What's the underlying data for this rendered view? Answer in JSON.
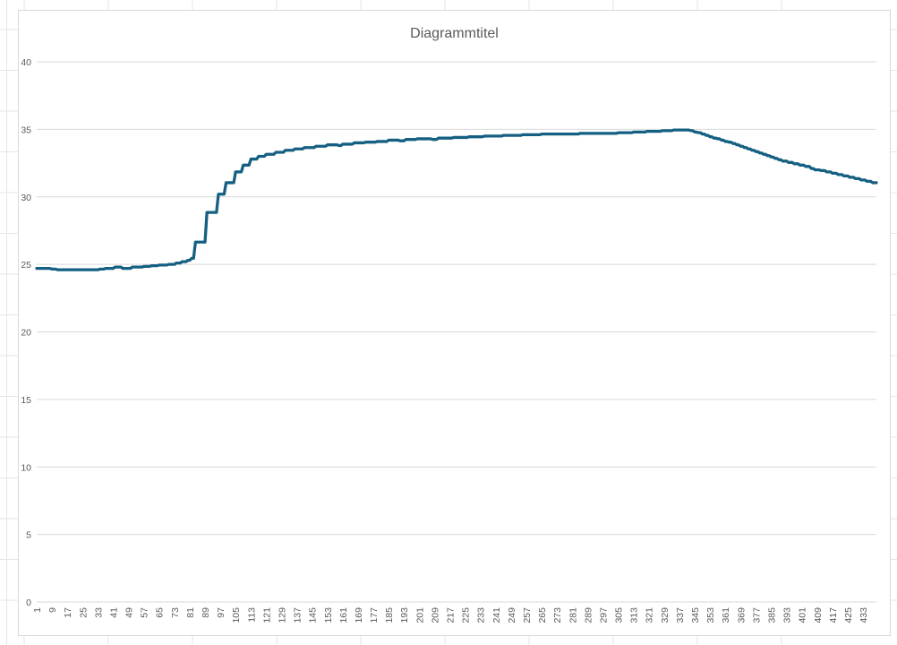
{
  "chart": {
    "colors": {
      "series": "#156082",
      "gridline": "#d9d9d9",
      "axis_text": "#595959",
      "title_text": "#595959",
      "chart_border": "#d9d9d9",
      "sheet_gridline": "#e6e6e6",
      "background": "#ffffff"
    }
  },
  "chart_data": {
    "type": "line",
    "title": "Diagrammtitel",
    "xlabel": "",
    "ylabel": "",
    "ylim": [
      0,
      40
    ],
    "y_ticks": [
      0,
      5,
      10,
      15,
      20,
      25,
      30,
      35,
      40
    ],
    "grid": true,
    "legend": "none",
    "x_start": 1,
    "x_step": 1,
    "x_label_interval": 8,
    "x_tick_labels": [
      1,
      9,
      17,
      25,
      33,
      41,
      49,
      57,
      65,
      73,
      81,
      89,
      97,
      105,
      113,
      121,
      129,
      137,
      145,
      153,
      161,
      169,
      177,
      185,
      193,
      201,
      209,
      217,
      225,
      233,
      241,
      249,
      257,
      265,
      273,
      281,
      289,
      297,
      305,
      313,
      321,
      329,
      337,
      345,
      353,
      361,
      369,
      377,
      385,
      393,
      401,
      409,
      417,
      425,
      433
    ],
    "series": [
      {
        "values": [
          24.7,
          24.7,
          24.7,
          24.7,
          24.7,
          24.7,
          24.7,
          24.7,
          24.65,
          24.65,
          24.65,
          24.6,
          24.6,
          24.6,
          24.6,
          24.6,
          24.6,
          24.6,
          24.6,
          24.6,
          24.6,
          24.6,
          24.6,
          24.6,
          24.6,
          24.6,
          24.6,
          24.6,
          24.6,
          24.6,
          24.6,
          24.6,
          24.6,
          24.65,
          24.65,
          24.65,
          24.7,
          24.7,
          24.7,
          24.7,
          24.7,
          24.8,
          24.8,
          24.8,
          24.8,
          24.7,
          24.7,
          24.7,
          24.7,
          24.7,
          24.8,
          24.8,
          24.8,
          24.8,
          24.8,
          24.8,
          24.85,
          24.85,
          24.85,
          24.85,
          24.9,
          24.9,
          24.9,
          24.9,
          24.95,
          24.95,
          24.95,
          24.95,
          24.95,
          25,
          25,
          25,
          25,
          25.1,
          25.1,
          25.1,
          25.2,
          25.2,
          25.2,
          25.3,
          25.3,
          25.45,
          25.45,
          26.65,
          26.65,
          26.65,
          26.65,
          26.65,
          26.65,
          28.85,
          28.85,
          28.85,
          28.85,
          28.85,
          28.85,
          30.2,
          30.2,
          30.2,
          30.2,
          31.05,
          31.05,
          31.05,
          31.05,
          31.05,
          31.85,
          31.85,
          31.85,
          31.85,
          32.35,
          32.35,
          32.35,
          32.35,
          32.8,
          32.8,
          32.8,
          32.8,
          33,
          33,
          33,
          33,
          33.15,
          33.15,
          33.15,
          33.15,
          33.15,
          33.3,
          33.3,
          33.3,
          33.3,
          33.3,
          33.45,
          33.45,
          33.45,
          33.45,
          33.45,
          33.55,
          33.55,
          33.55,
          33.55,
          33.55,
          33.65,
          33.65,
          33.65,
          33.65,
          33.65,
          33.65,
          33.75,
          33.75,
          33.75,
          33.75,
          33.75,
          33.75,
          33.85,
          33.85,
          33.85,
          33.85,
          33.85,
          33.85,
          33.8,
          33.8,
          33.9,
          33.9,
          33.9,
          33.9,
          33.9,
          33.9,
          34,
          34,
          34,
          34,
          34,
          34,
          34.05,
          34.05,
          34.05,
          34.05,
          34.05,
          34.05,
          34.1,
          34.1,
          34.1,
          34.1,
          34.1,
          34.1,
          34.2,
          34.2,
          34.2,
          34.2,
          34.2,
          34.2,
          34.15,
          34.15,
          34.15,
          34.25,
          34.25,
          34.25,
          34.25,
          34.25,
          34.25,
          34.3,
          34.3,
          34.3,
          34.3,
          34.3,
          34.3,
          34.3,
          34.3,
          34.25,
          34.25,
          34.25,
          34.35,
          34.35,
          34.35,
          34.35,
          34.35,
          34.35,
          34.35,
          34.35,
          34.4,
          34.4,
          34.4,
          34.4,
          34.4,
          34.4,
          34.4,
          34.4,
          34.45,
          34.45,
          34.45,
          34.45,
          34.45,
          34.45,
          34.45,
          34.45,
          34.5,
          34.5,
          34.5,
          34.5,
          34.5,
          34.5,
          34.5,
          34.5,
          34.5,
          34.5,
          34.55,
          34.55,
          34.55,
          34.55,
          34.55,
          34.55,
          34.55,
          34.55,
          34.55,
          34.55,
          34.6,
          34.6,
          34.6,
          34.6,
          34.6,
          34.6,
          34.6,
          34.6,
          34.6,
          34.6,
          34.65,
          34.65,
          34.65,
          34.65,
          34.65,
          34.65,
          34.65,
          34.65,
          34.65,
          34.65,
          34.65,
          34.65,
          34.65,
          34.65,
          34.65,
          34.65,
          34.65,
          34.65,
          34.65,
          34.65,
          34.7,
          34.7,
          34.7,
          34.7,
          34.7,
          34.7,
          34.7,
          34.7,
          34.7,
          34.7,
          34.7,
          34.7,
          34.7,
          34.7,
          34.7,
          34.7,
          34.7,
          34.7,
          34.7,
          34.7,
          34.75,
          34.75,
          34.75,
          34.75,
          34.75,
          34.75,
          34.75,
          34.75,
          34.8,
          34.8,
          34.8,
          34.8,
          34.8,
          34.8,
          34.8,
          34.85,
          34.85,
          34.85,
          34.85,
          34.85,
          34.85,
          34.85,
          34.85,
          34.9,
          34.9,
          34.9,
          34.9,
          34.9,
          34.9,
          34.95,
          34.95,
          34.95,
          34.95,
          34.95,
          34.95,
          34.95,
          34.95,
          34.95,
          34.9,
          34.9,
          34.8,
          34.8,
          34.75,
          34.75,
          34.65,
          34.65,
          34.55,
          34.55,
          34.45,
          34.45,
          34.35,
          34.35,
          34.3,
          34.3,
          34.2,
          34.2,
          34.1,
          34.1,
          34.05,
          34.05,
          33.95,
          33.95,
          33.85,
          33.85,
          33.75,
          33.75,
          33.65,
          33.65,
          33.55,
          33.55,
          33.45,
          33.45,
          33.35,
          33.35,
          33.25,
          33.25,
          33.15,
          33.15,
          33.05,
          33.05,
          32.95,
          32.95,
          32.85,
          32.85,
          32.75,
          32.75,
          32.65,
          32.65,
          32.65,
          32.55,
          32.55,
          32.55,
          32.45,
          32.45,
          32.45,
          32.35,
          32.35,
          32.35,
          32.25,
          32.25,
          32.25,
          32.1,
          32.1,
          32,
          32,
          32,
          31.95,
          31.95,
          31.95,
          31.85,
          31.85,
          31.85,
          31.75,
          31.75,
          31.75,
          31.65,
          31.65,
          31.65,
          31.55,
          31.55,
          31.55,
          31.45,
          31.45,
          31.45,
          31.35,
          31.35,
          31.35,
          31.25,
          31.25,
          31.25,
          31.15,
          31.15,
          31.15,
          31.05,
          31.05,
          31.05
        ]
      }
    ]
  }
}
